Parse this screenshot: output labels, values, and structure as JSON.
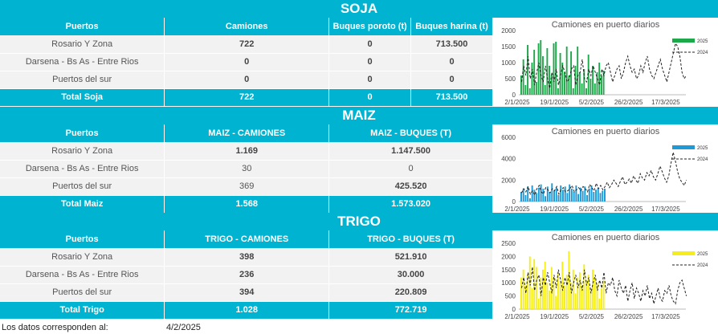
{
  "sections": {
    "soja": {
      "title": "SOJA",
      "headers": [
        "Puertos",
        "Camiones",
        "Buques poroto (t)",
        "Buques harina (t)"
      ],
      "rows": [
        {
          "puerto": "Rosario Y Zona",
          "c1": "722",
          "c2": "0",
          "c3": "713.500"
        },
        {
          "puerto": "Darsena - Bs As - Entre Rios",
          "c1": "0",
          "c2": "0",
          "c3": "0"
        },
        {
          "puerto": "Puertos del sur",
          "c1": "0",
          "c2": "0",
          "c3": "0"
        }
      ],
      "total": {
        "label": "Total Soja",
        "c1": "722",
        "c2": "0",
        "c3": "713.500"
      }
    },
    "maiz": {
      "title": "MAIZ",
      "headers": [
        "Puertos",
        "MAIZ - CAMIONES",
        "MAIZ - BUQUES (T)"
      ],
      "rows": [
        {
          "puerto": "Rosario Y Zona",
          "c1": "1.169",
          "c2": "1.147.500"
        },
        {
          "puerto": "Darsena - Bs As - Entre Rios",
          "c1": "30",
          "c2": "0"
        },
        {
          "puerto": "Puertos del sur",
          "c1": "369",
          "c2": "425.520"
        }
      ],
      "total": {
        "label": "Total Maiz",
        "c1": "1.568",
        "c2": "1.573.020"
      }
    },
    "trigo": {
      "title": "TRIGO",
      "headers": [
        "Puertos",
        "TRIGO - CAMIONES",
        "TRIGO - BUQUES (T)"
      ],
      "rows": [
        {
          "puerto": "Rosario Y Zona",
          "c1": "398",
          "c2": "521.910"
        },
        {
          "puerto": "Darsena - Bs As - Entre Rios",
          "c1": "236",
          "c2": "30.000"
        },
        {
          "puerto": "Puertos del sur",
          "c1": "394",
          "c2": "220.809"
        }
      ],
      "total": {
        "label": "Total Trigo",
        "c1": "1.028",
        "c2": "772.719"
      }
    }
  },
  "footer": {
    "label": "Los datos corresponden al:",
    "date": "4/2/2025"
  },
  "chart_data": [
    {
      "type": "bar",
      "title": "Camiones en puerto diarios",
      "x_tick_labels": [
        "2/1/2025",
        "19/1/2025",
        "5/2/2025",
        "26/2/2025",
        "17/3/2025"
      ],
      "y_ticks": [
        0,
        500,
        1000,
        1500,
        2000
      ],
      "ylim": [
        0,
        2000
      ],
      "legend_position": "top-right",
      "series": [
        {
          "name": "2025",
          "style": "bars",
          "color": "#1fa84a",
          "values": [
            600,
            1100,
            300,
            1550,
            200,
            1000,
            1400,
            400,
            1600,
            1700,
            1200,
            300,
            1450,
            900,
            600,
            1600,
            1650,
            200,
            1300,
            1000,
            700,
            1500,
            600,
            1350,
            200,
            900,
            1500,
            700,
            350,
            800,
            200,
            1250,
            500,
            900,
            350,
            700,
            1000,
            600,
            750
          ]
        },
        {
          "name": "2024",
          "style": "dashed-line",
          "color": "#222222",
          "values": [
            400,
            900,
            600,
            1200,
            500,
            800,
            300,
            700,
            1000,
            600,
            400,
            900,
            500,
            200,
            700,
            400,
            800,
            300,
            600,
            900,
            700,
            400,
            500,
            800,
            900,
            300,
            600,
            700,
            1100,
            500,
            400,
            800,
            600,
            900,
            700,
            500,
            300,
            800,
            600,
            900,
            1000,
            700,
            400,
            600,
            800,
            900,
            500,
            700,
            1000,
            1200,
            900,
            700,
            800,
            500,
            600,
            900,
            700,
            1000,
            1200,
            800,
            600,
            500,
            700,
            900,
            1100,
            800,
            600,
            400,
            700,
            1000,
            1300,
            1600,
            1500,
            1200,
            700,
            500,
            600
          ]
        }
      ]
    },
    {
      "type": "bar",
      "title": "Camiones en puerto diarios",
      "x_tick_labels": [
        "2/1/2025",
        "19/1/2025",
        "5/2/2025",
        "26/2/2025",
        "17/3/2025"
      ],
      "y_ticks": [
        0,
        2000,
        4000,
        6000
      ],
      "ylim": [
        0,
        6000
      ],
      "legend_position": "top-right",
      "series": [
        {
          "name": "2025",
          "style": "bars",
          "color": "#1e9ad6",
          "values": [
            900,
            1200,
            600,
            1400,
            300,
            1500,
            1100,
            800,
            1300,
            1600,
            1200,
            500,
            1400,
            900,
            1700,
            1000,
            1300,
            600,
            1500,
            1100,
            1400,
            800,
            1600,
            1200,
            900,
            1500,
            700,
            1300,
            1000,
            1400,
            600,
            1200,
            1500,
            900,
            1100,
            1300,
            800,
            1000,
            1200
          ]
        },
        {
          "name": "2024",
          "style": "dashed-line",
          "color": "#222222",
          "values": [
            800,
            1200,
            900,
            1400,
            700,
            1000,
            600,
            1200,
            1500,
            900,
            700,
            1300,
            1100,
            800,
            1200,
            1000,
            1400,
            700,
            1100,
            1300,
            900,
            1000,
            1200,
            1500,
            900,
            1100,
            1300,
            1000,
            1400,
            1200,
            900,
            1600,
            1300,
            1000,
            1700,
            1200,
            1500,
            1100,
            1400,
            1800,
            1300,
            1600,
            2000,
            1700,
            1400,
            1900,
            2300,
            1600,
            1800,
            2100,
            1700,
            2400,
            2000,
            1700,
            2600,
            2200,
            2000,
            2700,
            2400,
            2900,
            2300,
            2000,
            2600,
            3300,
            2800,
            2200,
            1800,
            2400,
            3600,
            4600,
            3800,
            2800,
            2100,
            1800,
            1500,
            2000
          ]
        }
      ]
    },
    {
      "type": "bar",
      "title": "Camiones en puerto diarios",
      "x_tick_labels": [
        "2/1/2025",
        "19/1/2025",
        "5/2/2025",
        "26/2/2025",
        "17/3/2025"
      ],
      "y_ticks": [
        0,
        500,
        1000,
        1500,
        2000,
        2500
      ],
      "ylim": [
        0,
        2500
      ],
      "legend_position": "top-right",
      "series": [
        {
          "name": "2025",
          "style": "bars",
          "color": "#f5ee1a",
          "values": [
            1200,
            1500,
            900,
            1300,
            2000,
            800,
            1900,
            1600,
            400,
            1200,
            1500,
            1800,
            1000,
            700,
            1600,
            1200,
            500,
            1400,
            1100,
            1800,
            900,
            1300,
            2200,
            1000,
            1500,
            600,
            1200,
            1400,
            900,
            1700,
            1100,
            1300,
            800,
            1500,
            1200,
            1000,
            400,
            800,
            1100
          ]
        },
        {
          "name": "2024",
          "style": "dashed-line",
          "color": "#222222",
          "values": [
            800,
            1200,
            600,
            1400,
            900,
            1600,
            700,
            1100,
            1300,
            500,
            1200,
            900,
            1400,
            1000,
            600,
            1300,
            800,
            1500,
            1100,
            700,
            1200,
            900,
            1400,
            600,
            1000,
            1300,
            800,
            1100,
            700,
            1500,
            900,
            1200,
            600,
            1000,
            1300,
            700,
            1100,
            800,
            1400,
            600,
            1000,
            900,
            1200,
            700,
            500,
            1100,
            800,
            600,
            900,
            300,
            700,
            1000,
            400,
            800,
            600,
            300,
            700,
            500,
            900,
            400,
            600,
            200,
            500,
            800,
            400,
            300,
            700,
            600,
            900,
            500,
            300,
            200,
            700,
            1000,
            1100,
            800,
            500
          ]
        }
      ]
    }
  ]
}
